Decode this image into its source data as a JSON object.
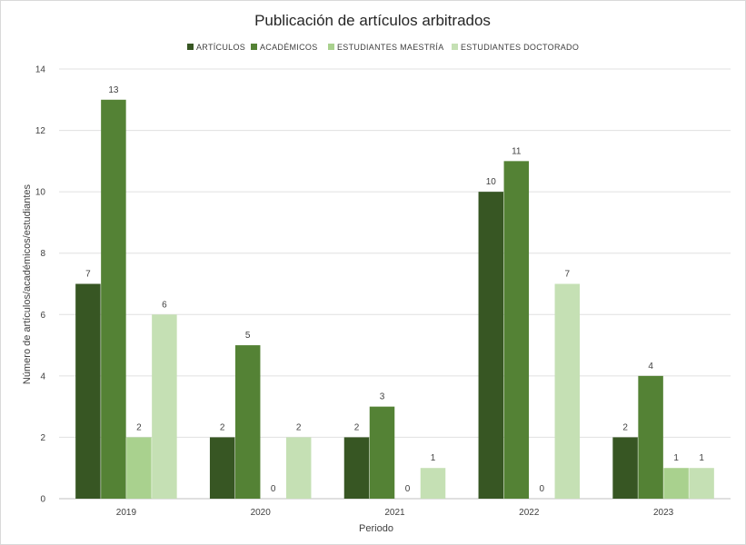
{
  "chart_data": {
    "type": "bar",
    "title": "Publicación de artículos arbitrados",
    "xlabel": "Periodo",
    "ylabel": "Número de  artículos/académicos/estudiantes",
    "categories": [
      "2019",
      "2020",
      "2021",
      "2022",
      "2023"
    ],
    "series": [
      {
        "name": "ARTÍCULOS",
        "color": "#375623",
        "values": [
          7,
          2,
          2,
          10,
          2
        ]
      },
      {
        "name": "ACADÉMICOS",
        "color": "#548235",
        "values": [
          13,
          5,
          3,
          11,
          4
        ]
      },
      {
        "name": "ESTUDIANTES MAESTRÍA",
        "color": "#a9d18e",
        "values": [
          2,
          0,
          0,
          0,
          1
        ]
      },
      {
        "name": "ESTUDIANTES DOCTORADO",
        "color": "#c5e0b4",
        "values": [
          6,
          2,
          1,
          7,
          1
        ]
      }
    ],
    "ylim": [
      0,
      14
    ],
    "yticks": [
      0,
      2,
      4,
      6,
      8,
      10,
      12,
      14
    ],
    "grid": true,
    "legend": "top"
  }
}
